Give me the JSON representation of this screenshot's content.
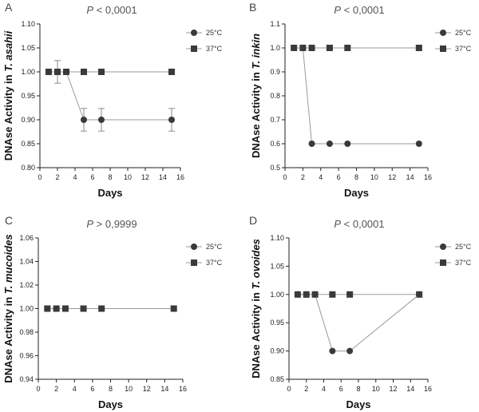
{
  "legend": {
    "s25": "25°C",
    "s37": "37°C"
  },
  "colors": {
    "marker": "#3a3a3a",
    "line": "#9a9a9a",
    "axis": "#222222",
    "errorbar": "#8a8a8a"
  },
  "chart_data": [
    {
      "type": "line",
      "panel": "A",
      "p_label": "P",
      "p_value": "< 0,0001",
      "xlabel": "Days",
      "ylabel_prefix": "DNAse Activity in ",
      "ylabel_species": "T. asahii",
      "xlim": [
        0,
        16
      ],
      "ylim": [
        0.8,
        1.1
      ],
      "xticks": [
        0,
        2,
        4,
        6,
        8,
        10,
        12,
        14,
        16
      ],
      "yticks": [
        0.8,
        0.85,
        0.9,
        0.95,
        1.0,
        1.05,
        1.1
      ],
      "ytick_labels": [
        "0.80",
        "0.85",
        "0.90",
        "0.95",
        "1.00",
        "1.05",
        "1.10"
      ],
      "series": [
        {
          "name": "25°C",
          "marker": "circle",
          "x": [
            1,
            2,
            3,
            5,
            7,
            15
          ],
          "y": [
            1.0,
            1.0,
            1.0,
            0.9,
            0.9,
            0.9
          ],
          "err": [
            0,
            0.0236,
            0,
            0.0236,
            0.0236,
            0.0236
          ]
        },
        {
          "name": "37°C",
          "marker": "square",
          "x": [
            1,
            2,
            3,
            5,
            7,
            15
          ],
          "y": [
            1.0,
            1.0,
            1.0,
            1.0,
            1.0,
            1.0
          ]
        }
      ]
    },
    {
      "type": "line",
      "panel": "B",
      "p_label": "P",
      "p_value": "< 0,0001",
      "xlabel": "Days",
      "ylabel_prefix": "DNAse Activity in ",
      "ylabel_species": "T. inkin",
      "xlim": [
        0,
        16
      ],
      "ylim": [
        0.5,
        1.1
      ],
      "xticks": [
        0,
        2,
        4,
        6,
        8,
        10,
        12,
        14,
        16
      ],
      "yticks": [
        0.5,
        0.6,
        0.7,
        0.8,
        0.9,
        1.0,
        1.1
      ],
      "ytick_labels": [
        "0.5",
        "0.6",
        "0.7",
        "0.8",
        "0.9",
        "1.0",
        "1.1"
      ],
      "series": [
        {
          "name": "25°C",
          "marker": "circle",
          "x": [
            1,
            2,
            3,
            5,
            7,
            15
          ],
          "y": [
            1.0,
            1.0,
            0.6,
            0.6,
            0.6,
            0.6
          ]
        },
        {
          "name": "37°C",
          "marker": "square",
          "x": [
            1,
            2,
            3,
            5,
            7,
            15
          ],
          "y": [
            1.0,
            1.0,
            1.0,
            1.0,
            1.0,
            1.0
          ]
        }
      ]
    },
    {
      "type": "line",
      "panel": "C",
      "p_label": "P",
      "p_value": "> 0,9999",
      "xlabel": "Days",
      "ylabel_prefix": "DNAse Activity in ",
      "ylabel_species": "T. mucoides",
      "xlim": [
        0,
        16
      ],
      "ylim": [
        0.94,
        1.06
      ],
      "xticks": [
        0,
        2,
        4,
        6,
        8,
        10,
        12,
        14,
        16
      ],
      "yticks": [
        0.94,
        0.96,
        0.98,
        1.0,
        1.02,
        1.04,
        1.06
      ],
      "ytick_labels": [
        "0.94",
        "0.96",
        "0.98",
        "1.00",
        "1.02",
        "1.04",
        "1.06"
      ],
      "series": [
        {
          "name": "25°C",
          "marker": "circle",
          "x": [
            1,
            2,
            3,
            5,
            7,
            15
          ],
          "y": [
            1.0,
            1.0,
            1.0,
            1.0,
            1.0,
            1.0
          ]
        },
        {
          "name": "37°C",
          "marker": "square",
          "x": [
            1,
            2,
            3,
            5,
            7,
            15
          ],
          "y": [
            1.0,
            1.0,
            1.0,
            1.0,
            1.0,
            1.0
          ]
        }
      ]
    },
    {
      "type": "line",
      "panel": "D",
      "p_label": "P",
      "p_value": "< 0,0001",
      "xlabel": "Days",
      "ylabel_prefix": "DNAse Activity in ",
      "ylabel_species": "T. ovoides",
      "xlim": [
        0,
        16
      ],
      "ylim": [
        0.85,
        1.1
      ],
      "xticks": [
        0,
        2,
        4,
        6,
        8,
        10,
        12,
        14,
        16
      ],
      "yticks": [
        0.85,
        0.9,
        0.95,
        1.0,
        1.05,
        1.1
      ],
      "ytick_labels": [
        "0.85",
        "0.90",
        "0.95",
        "1.00",
        "1.05",
        "1.10"
      ],
      "series": [
        {
          "name": "25°C",
          "marker": "circle",
          "x": [
            1,
            2,
            3,
            5,
            7,
            15
          ],
          "y": [
            1.0,
            1.0,
            1.0,
            0.9,
            0.9,
            1.0
          ]
        },
        {
          "name": "37°C",
          "marker": "square",
          "x": [
            1,
            2,
            3,
            5,
            7,
            15
          ],
          "y": [
            1.0,
            1.0,
            1.0,
            1.0,
            1.0,
            1.0
          ]
        }
      ]
    }
  ]
}
